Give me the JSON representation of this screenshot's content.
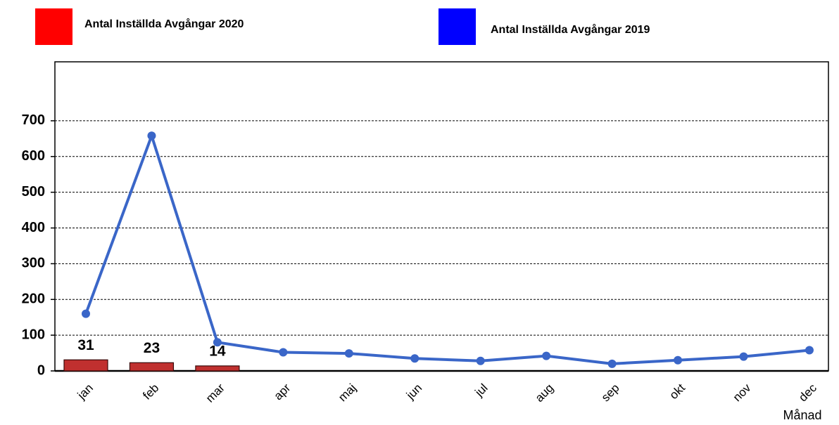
{
  "chart_data": {
    "type": "bar-line",
    "categories": [
      "jan",
      "feb",
      "mar",
      "apr",
      "maj",
      "jun",
      "jul",
      "aug",
      "sep",
      "okt",
      "nov",
      "dec"
    ],
    "x_label": "Månad",
    "series": [
      {
        "name": "Antal Inställda Avgångar 2020",
        "type": "bar",
        "color": "#c0302f",
        "legend_color": "#ff0000",
        "values": [
          31,
          23,
          14,
          null,
          null,
          null,
          null,
          null,
          null,
          null,
          null,
          null
        ]
      },
      {
        "name": "Antal Inställda Avgångar 2019",
        "type": "line",
        "color": "#3a66c8",
        "legend_color": "#0000ff",
        "values": [
          160,
          658,
          80,
          52,
          49,
          35,
          28,
          42,
          20,
          30,
          40,
          58
        ]
      }
    ],
    "ylim": [
      0,
      865
    ],
    "yticks": [
      0,
      100,
      200,
      300,
      400,
      500,
      600,
      700
    ],
    "grid": true
  }
}
